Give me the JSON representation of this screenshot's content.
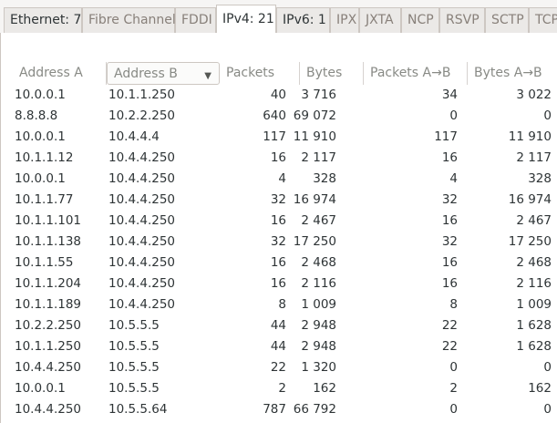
{
  "tabs": [
    {
      "label": "Ethernet: 7"
    },
    {
      "label": "Fibre Channel"
    },
    {
      "label": "FDDI"
    },
    {
      "label": "IPv4: 21"
    },
    {
      "label": "IPv6: 1"
    },
    {
      "label": "IPX"
    },
    {
      "label": "JXTA"
    },
    {
      "label": "NCP"
    },
    {
      "label": "RSVP"
    },
    {
      "label": "SCTP"
    },
    {
      "label": "TCP"
    }
  ],
  "active_tab": "IPv4: 21",
  "table": {
    "columns": [
      "Address A",
      "Address B",
      "Packets",
      "Bytes",
      "Packets A→B",
      "Bytes A→B"
    ],
    "sorted_column": "Address B",
    "rows": [
      {
        "a": "10.0.0.1",
        "b": "10.1.1.250",
        "packets": "40",
        "bytes": "3 716",
        "packets_ab": "34",
        "bytes_ab": "3 022"
      },
      {
        "a": "8.8.8.8",
        "b": "10.2.2.250",
        "packets": "640",
        "bytes": "69 072",
        "packets_ab": "0",
        "bytes_ab": "0"
      },
      {
        "a": "10.0.0.1",
        "b": "10.4.4.4",
        "packets": "117",
        "bytes": "11 910",
        "packets_ab": "117",
        "bytes_ab": "11 910"
      },
      {
        "a": "10.1.1.12",
        "b": "10.4.4.250",
        "packets": "16",
        "bytes": "2 117",
        "packets_ab": "16",
        "bytes_ab": "2 117"
      },
      {
        "a": "10.0.0.1",
        "b": "10.4.4.250",
        "packets": "4",
        "bytes": "328",
        "packets_ab": "4",
        "bytes_ab": "328"
      },
      {
        "a": "10.1.1.77",
        "b": "10.4.4.250",
        "packets": "32",
        "bytes": "16 974",
        "packets_ab": "32",
        "bytes_ab": "16 974"
      },
      {
        "a": "10.1.1.101",
        "b": "10.4.4.250",
        "packets": "16",
        "bytes": "2 467",
        "packets_ab": "16",
        "bytes_ab": "2 467"
      },
      {
        "a": "10.1.1.138",
        "b": "10.4.4.250",
        "packets": "32",
        "bytes": "17 250",
        "packets_ab": "32",
        "bytes_ab": "17 250"
      },
      {
        "a": "10.1.1.55",
        "b": "10.4.4.250",
        "packets": "16",
        "bytes": "2 468",
        "packets_ab": "16",
        "bytes_ab": "2 468"
      },
      {
        "a": "10.1.1.204",
        "b": "10.4.4.250",
        "packets": "16",
        "bytes": "2 116",
        "packets_ab": "16",
        "bytes_ab": "2 116"
      },
      {
        "a": "10.1.1.189",
        "b": "10.4.4.250",
        "packets": "8",
        "bytes": "1 009",
        "packets_ab": "8",
        "bytes_ab": "1 009"
      },
      {
        "a": "10.2.2.250",
        "b": "10.5.5.5",
        "packets": "44",
        "bytes": "2 948",
        "packets_ab": "22",
        "bytes_ab": "1 628"
      },
      {
        "a": "10.1.1.250",
        "b": "10.5.5.5",
        "packets": "44",
        "bytes": "2 948",
        "packets_ab": "22",
        "bytes_ab": "1 628"
      },
      {
        "a": "10.4.4.250",
        "b": "10.5.5.5",
        "packets": "22",
        "bytes": "1 320",
        "packets_ab": "0",
        "bytes_ab": "0"
      },
      {
        "a": "10.0.0.1",
        "b": "10.5.5.5",
        "packets": "2",
        "bytes": "162",
        "packets_ab": "2",
        "bytes_ab": "162"
      },
      {
        "a": "10.4.4.250",
        "b": "10.5.5.64",
        "packets": "787",
        "bytes": "66 792",
        "packets_ab": "0",
        "bytes_ab": "0"
      }
    ]
  }
}
